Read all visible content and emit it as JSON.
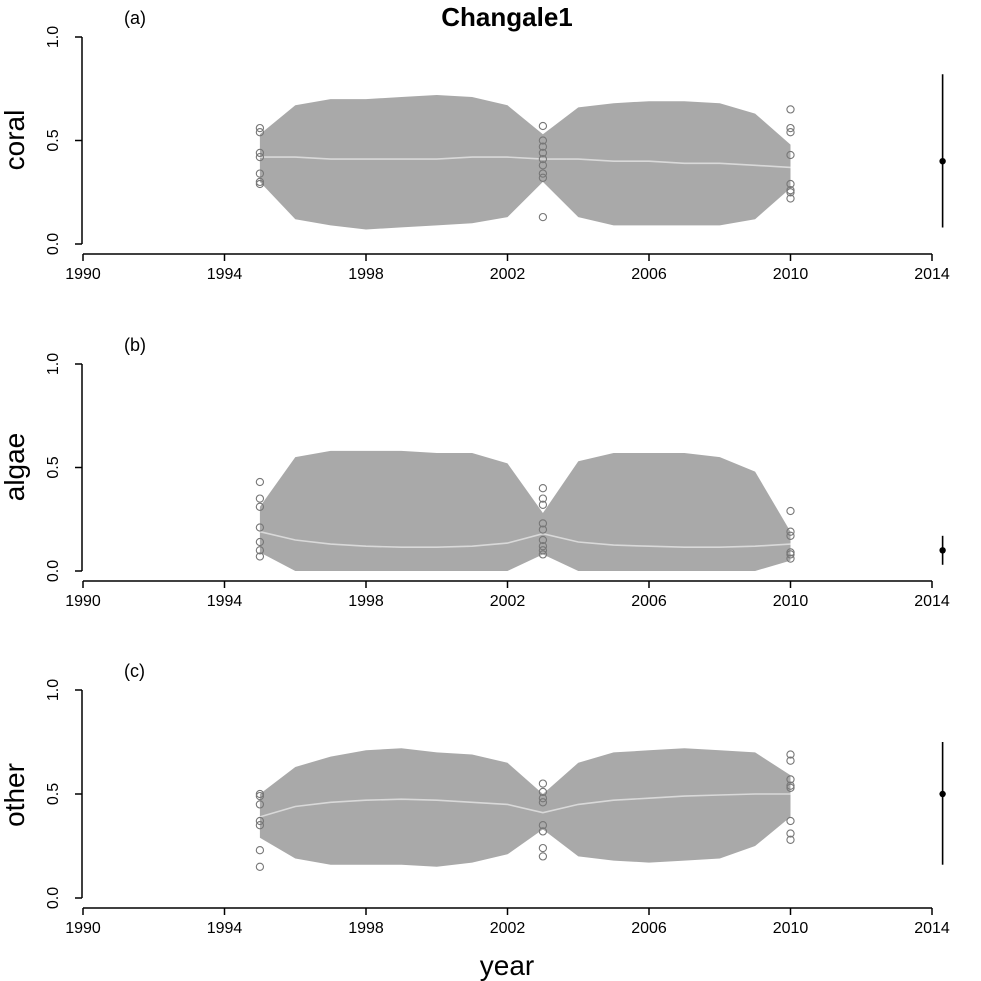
{
  "chart_data": {
    "type": "area",
    "title": "Changale1",
    "xlabel": "year",
    "xlim": [
      1990,
      2014
    ],
    "x_ticks": [
      1990,
      1994,
      1998,
      2002,
      2006,
      2010,
      2014
    ],
    "y_ticks": [
      "0.0",
      "0.5",
      "1.0"
    ],
    "panels": [
      {
        "label": "(a)",
        "ylabel": "coral",
        "ylim": [
          0,
          1
        ],
        "band_x": [
          1995,
          1996,
          1997,
          1998,
          1999,
          2000,
          2001,
          2002,
          2003,
          2004,
          2005,
          2006,
          2007,
          2008,
          2009,
          2010
        ],
        "band_upper": [
          0.53,
          0.67,
          0.7,
          0.7,
          0.71,
          0.72,
          0.71,
          0.67,
          0.53,
          0.66,
          0.68,
          0.69,
          0.69,
          0.68,
          0.63,
          0.48
        ],
        "band_lower": [
          0.3,
          0.12,
          0.09,
          0.07,
          0.08,
          0.09,
          0.1,
          0.13,
          0.3,
          0.13,
          0.09,
          0.09,
          0.09,
          0.09,
          0.12,
          0.27
        ],
        "mean": [
          0.42,
          0.42,
          0.41,
          0.41,
          0.41,
          0.41,
          0.42,
          0.42,
          0.41,
          0.41,
          0.4,
          0.4,
          0.39,
          0.39,
          0.38,
          0.37
        ],
        "observations": [
          {
            "x": 1995,
            "y": [
              0.56,
              0.54,
              0.44,
              0.42,
              0.34,
              0.3,
              0.29
            ]
          },
          {
            "x": 2003,
            "y": [
              0.57,
              0.5,
              0.47,
              0.44,
              0.41,
              0.38,
              0.34,
              0.32,
              0.13
            ]
          },
          {
            "x": 2010,
            "y": [
              0.65,
              0.56,
              0.54,
              0.43,
              0.29,
              0.26,
              0.25,
              0.22
            ]
          }
        ],
        "prediction": {
          "x": 2014.3,
          "y": 0.4,
          "low": 0.08,
          "high": 0.82
        }
      },
      {
        "label": "(b)",
        "ylabel": "algae",
        "ylim": [
          0,
          1
        ],
        "band_x": [
          1995,
          1996,
          1997,
          1998,
          1999,
          2000,
          2001,
          2002,
          2003,
          2004,
          2005,
          2006,
          2007,
          2008,
          2009,
          2010
        ],
        "band_upper": [
          0.31,
          0.55,
          0.58,
          0.58,
          0.58,
          0.57,
          0.57,
          0.52,
          0.28,
          0.53,
          0.57,
          0.57,
          0.57,
          0.55,
          0.48,
          0.19
        ],
        "band_lower": [
          0.09,
          0.0,
          0.0,
          0.0,
          0.0,
          0.0,
          0.0,
          0.0,
          0.08,
          0.0,
          0.0,
          0.0,
          0.0,
          0.0,
          0.0,
          0.05
        ],
        "mean": [
          0.19,
          0.15,
          0.13,
          0.12,
          0.115,
          0.115,
          0.12,
          0.135,
          0.18,
          0.14,
          0.125,
          0.12,
          0.115,
          0.115,
          0.12,
          0.13
        ],
        "observations": [
          {
            "x": 1995,
            "y": [
              0.43,
              0.35,
              0.31,
              0.21,
              0.14,
              0.1,
              0.07
            ]
          },
          {
            "x": 2003,
            "y": [
              0.4,
              0.35,
              0.32,
              0.23,
              0.2,
              0.15,
              0.12,
              0.1,
              0.08
            ]
          },
          {
            "x": 2010,
            "y": [
              0.29,
              0.19,
              0.17,
              0.09,
              0.08,
              0.06
            ]
          }
        ],
        "prediction": {
          "x": 2014.3,
          "y": 0.1,
          "low": 0.03,
          "high": 0.17
        }
      },
      {
        "label": "(c)",
        "ylabel": "other",
        "ylim": [
          0,
          1
        ],
        "band_x": [
          1995,
          1996,
          1997,
          1998,
          1999,
          2000,
          2001,
          2002,
          2003,
          2004,
          2005,
          2006,
          2007,
          2008,
          2009,
          2010
        ],
        "band_upper": [
          0.5,
          0.63,
          0.68,
          0.71,
          0.72,
          0.7,
          0.69,
          0.65,
          0.5,
          0.65,
          0.7,
          0.71,
          0.72,
          0.71,
          0.7,
          0.59
        ],
        "band_lower": [
          0.29,
          0.19,
          0.16,
          0.16,
          0.16,
          0.15,
          0.17,
          0.21,
          0.33,
          0.2,
          0.18,
          0.17,
          0.18,
          0.19,
          0.25,
          0.39
        ],
        "mean": [
          0.39,
          0.44,
          0.46,
          0.47,
          0.475,
          0.47,
          0.46,
          0.45,
          0.41,
          0.45,
          0.47,
          0.48,
          0.49,
          0.495,
          0.5,
          0.5
        ],
        "observations": [
          {
            "x": 1995,
            "y": [
              0.5,
              0.49,
              0.45,
              0.37,
              0.35,
              0.23,
              0.15
            ]
          },
          {
            "x": 2003,
            "y": [
              0.55,
              0.51,
              0.48,
              0.46,
              0.35,
              0.32,
              0.24,
              0.2
            ]
          },
          {
            "x": 2010,
            "y": [
              0.69,
              0.66,
              0.57,
              0.54,
              0.53,
              0.37,
              0.31,
              0.28
            ]
          }
        ],
        "prediction": {
          "x": 2014.3,
          "y": 0.5,
          "low": 0.16,
          "high": 0.75
        }
      }
    ]
  }
}
